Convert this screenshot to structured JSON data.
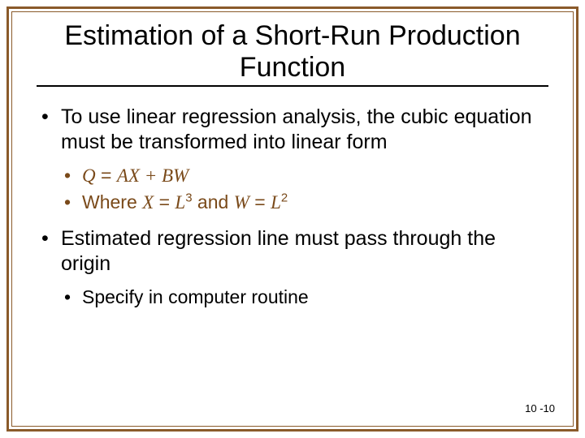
{
  "colors": {
    "border": "#8a5a2a",
    "accent_text": "#7a4a1a",
    "body_text": "#000000",
    "background": "#ffffff"
  },
  "typography": {
    "title_fontsize": 34,
    "body_fontsize": 25,
    "sub_fontsize": 23,
    "pagenum_fontsize": 13,
    "font_family": "Arial"
  },
  "title": "Estimation of a Short-Run Production Function",
  "bullets": [
    {
      "text": "To use linear regression analysis, the cubic equation must be transformed into linear form",
      "sub_accent": true,
      "sub": [
        {
          "kind": "equation",
          "lhs": "Q",
          "rhs": "AX + BW"
        },
        {
          "kind": "where",
          "prefix": "Where ",
          "a_var": "X",
          "a_def_base": "L",
          "a_def_exp": "3",
          "conj": " and ",
          "b_var": "W",
          "b_def_base": "L",
          "b_def_exp": "2"
        }
      ]
    },
    {
      "text": "Estimated regression line must pass through the origin",
      "sub_accent": false,
      "sub": [
        {
          "kind": "text",
          "text": "Specify in computer routine"
        }
      ]
    }
  ],
  "page_number": "10 -10"
}
